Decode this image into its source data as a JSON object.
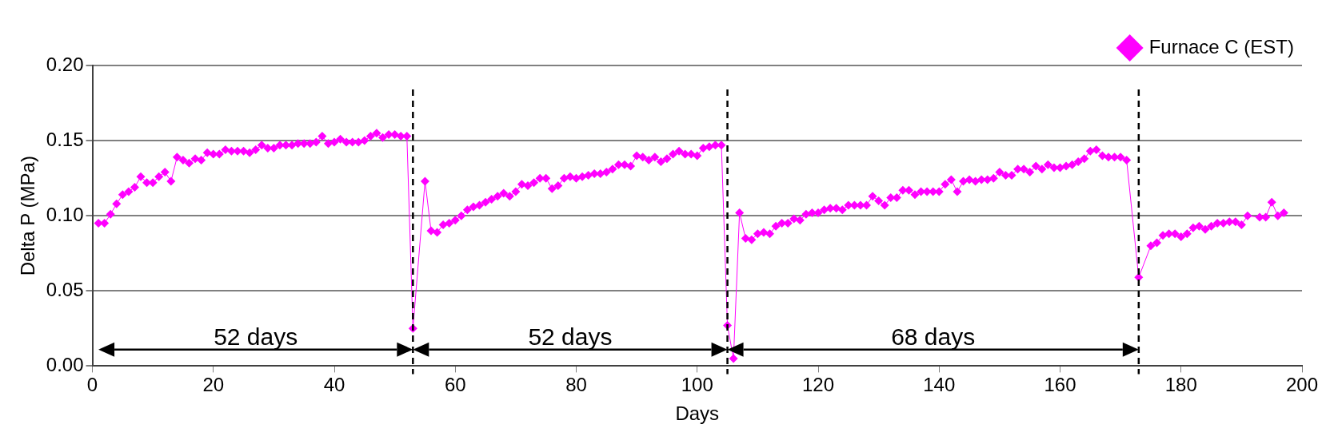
{
  "chart_data": {
    "type": "line",
    "xlabel": "Days",
    "ylabel": "Delta P (MPa)",
    "xlim": [
      0,
      200
    ],
    "xticks": [
      0,
      20,
      40,
      60,
      80,
      100,
      120,
      140,
      160,
      180,
      200
    ],
    "ylim": [
      0,
      0.2
    ],
    "yticks": [
      {
        "value": 0,
        "label": "0.00"
      },
      {
        "value": 0.05,
        "label": "0.05"
      },
      {
        "value": 0.1,
        "label": "0.10"
      },
      {
        "value": 0.15,
        "label": "0.15"
      },
      {
        "value": 0.2,
        "label": "0.20"
      }
    ],
    "grid": "y",
    "legend": "top right",
    "marker": "diamond",
    "line_style": "solid",
    "series": [
      {
        "name": "Furnace C (EST)",
        "color": "#ff00ff",
        "x": [
          1,
          2,
          3,
          4,
          5,
          6,
          7,
          8,
          9,
          10,
          11,
          12,
          13,
          14,
          15,
          16,
          17,
          18,
          19,
          20,
          21,
          22,
          23,
          24,
          25,
          26,
          27,
          28,
          29,
          30,
          31,
          32,
          33,
          34,
          35,
          36,
          37,
          38,
          39,
          40,
          41,
          42,
          43,
          44,
          45,
          46,
          47,
          48,
          49,
          50,
          51,
          52,
          53,
          55,
          56,
          57,
          58,
          59,
          60,
          61,
          62,
          63,
          64,
          65,
          66,
          67,
          68,
          69,
          70,
          71,
          72,
          73,
          74,
          75,
          76,
          77,
          78,
          79,
          80,
          81,
          82,
          83,
          84,
          85,
          86,
          87,
          88,
          89,
          90,
          91,
          92,
          93,
          94,
          95,
          96,
          97,
          98,
          99,
          100,
          101,
          102,
          103,
          104,
          105,
          106,
          107,
          108,
          109,
          110,
          111,
          112,
          113,
          114,
          115,
          116,
          117,
          118,
          119,
          120,
          121,
          122,
          123,
          124,
          125,
          126,
          127,
          128,
          129,
          130,
          131,
          132,
          133,
          134,
          135,
          136,
          137,
          138,
          139,
          140,
          141,
          142,
          143,
          144,
          145,
          146,
          147,
          148,
          149,
          150,
          151,
          152,
          153,
          154,
          155,
          156,
          157,
          158,
          159,
          160,
          161,
          162,
          163,
          164,
          165,
          166,
          167,
          168,
          169,
          170,
          171,
          173,
          175,
          176,
          177,
          178,
          179,
          180,
          181,
          182,
          183,
          184,
          185,
          186,
          187,
          188,
          189,
          190,
          191,
          193,
          194,
          195,
          196,
          197
        ],
        "values": [
          0.095,
          0.095,
          0.101,
          0.108,
          0.114,
          0.116,
          0.119,
          0.126,
          0.122,
          0.122,
          0.126,
          0.129,
          0.123,
          0.139,
          0.137,
          0.135,
          0.138,
          0.137,
          0.142,
          0.141,
          0.141,
          0.144,
          0.143,
          0.143,
          0.143,
          0.142,
          0.144,
          0.147,
          0.145,
          0.145,
          0.147,
          0.147,
          0.147,
          0.148,
          0.148,
          0.148,
          0.149,
          0.153,
          0.148,
          0.149,
          0.151,
          0.149,
          0.149,
          0.149,
          0.15,
          0.153,
          0.155,
          0.152,
          0.154,
          0.154,
          0.153,
          0.153,
          0.025,
          0.123,
          0.09,
          0.089,
          0.094,
          0.095,
          0.097,
          0.1,
          0.104,
          0.106,
          0.107,
          0.109,
          0.111,
          0.113,
          0.115,
          0.113,
          0.116,
          0.121,
          0.12,
          0.122,
          0.125,
          0.125,
          0.118,
          0.12,
          0.125,
          0.126,
          0.125,
          0.126,
          0.127,
          0.128,
          0.128,
          0.129,
          0.131,
          0.134,
          0.134,
          0.133,
          0.14,
          0.139,
          0.137,
          0.139,
          0.136,
          0.138,
          0.141,
          0.143,
          0.141,
          0.141,
          0.14,
          0.145,
          0.146,
          0.147,
          0.147,
          0.027,
          0.005,
          0.102,
          0.085,
          0.084,
          0.088,
          0.089,
          0.088,
          0.093,
          0.095,
          0.095,
          0.098,
          0.097,
          0.101,
          0.102,
          0.102,
          0.104,
          0.105,
          0.105,
          0.104,
          0.107,
          0.107,
          0.107,
          0.107,
          0.113,
          0.11,
          0.107,
          0.112,
          0.112,
          0.117,
          0.117,
          0.114,
          0.116,
          0.116,
          0.116,
          0.116,
          0.121,
          0.124,
          0.116,
          0.123,
          0.124,
          0.123,
          0.124,
          0.124,
          0.125,
          0.129,
          0.127,
          0.127,
          0.131,
          0.131,
          0.129,
          0.133,
          0.131,
          0.134,
          0.132,
          0.132,
          0.133,
          0.134,
          0.136,
          0.138,
          0.143,
          0.144,
          0.14,
          0.139,
          0.139,
          0.139,
          0.137,
          0.059,
          0.08,
          0.082,
          0.087,
          0.088,
          0.088,
          0.086,
          0.088,
          0.092,
          0.093,
          0.091,
          0.093,
          0.095,
          0.095,
          0.096,
          0.096,
          0.094,
          0.1,
          0.099,
          0.099,
          0.109,
          0.1,
          0.102
        ]
      }
    ],
    "ref_lines": [
      {
        "axis": "x",
        "value": 53,
        "color": "#000000",
        "line_style": "dashed"
      },
      {
        "axis": "x",
        "value": 105,
        "color": "#000000",
        "line_style": "dashed"
      },
      {
        "axis": "x",
        "value": 173,
        "color": "#000000",
        "line_style": "dashed"
      }
    ],
    "annotations": [
      "52 days",
      "52 days",
      "68 days"
    ]
  }
}
